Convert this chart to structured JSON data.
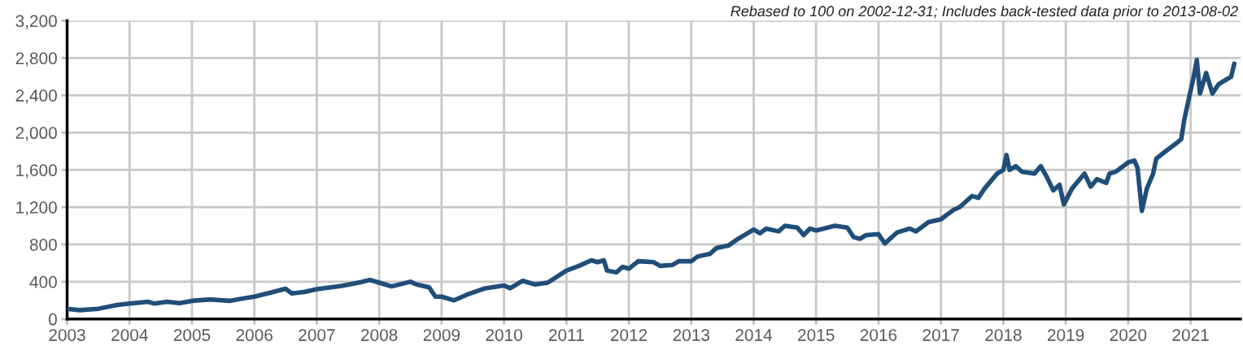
{
  "chart_data": {
    "type": "line",
    "annotations": [
      "Rebased to 100 on 2002-12-31; Includes back-tested data prior to 2013-08-02"
    ],
    "x": [
      2003.0,
      2003.2,
      2003.5,
      2003.8,
      2004.0,
      2004.3,
      2004.4,
      2004.6,
      2004.8,
      2005.0,
      2005.3,
      2005.6,
      2005.9,
      2006.0,
      2006.3,
      2006.5,
      2006.6,
      2006.8,
      2007.0,
      2007.4,
      2007.7,
      2007.85,
      2008.0,
      2008.2,
      2008.5,
      2008.6,
      2008.8,
      2008.9,
      2009.0,
      2009.2,
      2009.4,
      2009.7,
      2010.0,
      2010.1,
      2010.3,
      2010.5,
      2010.7,
      2011.0,
      2011.2,
      2011.4,
      2011.5,
      2011.6,
      2011.65,
      2011.8,
      2011.9,
      2012.0,
      2012.15,
      2012.4,
      2012.5,
      2012.7,
      2012.8,
      2013.0,
      2013.1,
      2013.3,
      2013.4,
      2013.6,
      2013.75,
      2014.0,
      2014.1,
      2014.2,
      2014.4,
      2014.5,
      2014.7,
      2014.8,
      2014.9,
      2015.0,
      2015.3,
      2015.5,
      2015.6,
      2015.7,
      2015.8,
      2016.0,
      2016.1,
      2016.3,
      2016.5,
      2016.6,
      2016.8,
      2017.0,
      2017.2,
      2017.3,
      2017.5,
      2017.6,
      2017.7,
      2017.9,
      2018.0,
      2018.05,
      2018.1,
      2018.2,
      2018.3,
      2018.5,
      2018.6,
      2018.7,
      2018.8,
      2018.9,
      2018.97,
      2019.1,
      2019.3,
      2019.4,
      2019.5,
      2019.65,
      2019.7,
      2019.8,
      2020.0,
      2020.1,
      2020.15,
      2020.22,
      2020.3,
      2020.4,
      2020.45,
      2020.6,
      2020.8,
      2020.85,
      2020.9,
      2021.0,
      2021.05,
      2021.1,
      2021.15,
      2021.25,
      2021.35,
      2021.45,
      2021.55,
      2021.65,
      2021.7
    ],
    "series": [
      {
        "color": "#1f4e79",
        "values": [
          110,
          95,
          110,
          150,
          165,
          185,
          165,
          185,
          170,
          195,
          210,
          195,
          230,
          240,
          290,
          325,
          275,
          290,
          320,
          355,
          395,
          420,
          390,
          350,
          400,
          370,
          340,
          240,
          240,
          200,
          260,
          330,
          360,
          330,
          410,
          370,
          390,
          520,
          570,
          630,
          610,
          630,
          520,
          500,
          560,
          540,
          620,
          610,
          570,
          580,
          620,
          620,
          670,
          700,
          760,
          790,
          860,
          960,
          920,
          970,
          940,
          1000,
          980,
          900,
          970,
          950,
          1000,
          980,
          880,
          860,
          900,
          910,
          810,
          930,
          970,
          940,
          1040,
          1070,
          1170,
          1200,
          1320,
          1300,
          1400,
          1560,
          1600,
          1760,
          1600,
          1640,
          1580,
          1560,
          1640,
          1520,
          1380,
          1440,
          1230,
          1400,
          1560,
          1420,
          1500,
          1460,
          1560,
          1580,
          1680,
          1700,
          1620,
          1160,
          1400,
          1560,
          1720,
          1800,
          1900,
          1930,
          2140,
          2450,
          2600,
          2780,
          2420,
          2640,
          2420,
          2520,
          2560,
          2600,
          2740
        ]
      }
    ],
    "xlim": [
      2003,
      2021.8
    ],
    "xticks": [
      2003,
      2004,
      2005,
      2006,
      2007,
      2008,
      2009,
      2010,
      2011,
      2012,
      2013,
      2014,
      2015,
      2016,
      2017,
      2018,
      2019,
      2020,
      2021
    ],
    "ylim": [
      0,
      3200
    ],
    "yticks": [
      {
        "value": 0,
        "label": "0"
      },
      {
        "value": 400,
        "label": "400"
      },
      {
        "value": 800,
        "label": "800"
      },
      {
        "value": 1200,
        "label": "1,200"
      },
      {
        "value": 1600,
        "label": "1,600"
      },
      {
        "value": 2000,
        "label": "2,000"
      },
      {
        "value": 2400,
        "label": "2,400"
      },
      {
        "value": 2800,
        "label": "2,800"
      },
      {
        "value": 3200,
        "label": "3,200"
      }
    ],
    "grid": true,
    "legend": false
  }
}
